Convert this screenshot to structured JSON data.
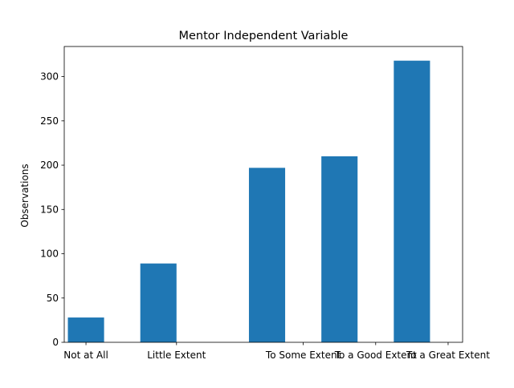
{
  "chart_data": {
    "type": "bar",
    "title": "Mentor Independent Variable",
    "xlabel": "",
    "ylabel": "Observations",
    "bars": [
      {
        "label": "Not at All",
        "x": 0,
        "value": 28
      },
      {
        "label": "Little Extent",
        "x": 1,
        "value": 89
      },
      {
        "label": "To Some Extent",
        "x": 2.5,
        "value": 197
      },
      {
        "label": "To a Good Extent",
        "x": 3.5,
        "value": 210
      },
      {
        "label": "To a Great Extent",
        "x": 4.5,
        "value": 318
      }
    ],
    "xticks": [
      {
        "label": "Not at All",
        "x": 0
      },
      {
        "label": "Little Extent",
        "x": 1.25
      },
      {
        "label": "To Some Extent",
        "x": 3.0
      },
      {
        "label": "To a Good Extent",
        "x": 4.0
      },
      {
        "label": "To a Great Extent",
        "x": 5.0
      }
    ],
    "yticks": [
      0,
      50,
      100,
      150,
      200,
      250,
      300
    ],
    "xlim": [
      -0.3,
      5.2
    ],
    "ylim": [
      0,
      334
    ],
    "grid": false,
    "legend": "none",
    "bar_width": 0.5,
    "colors": {
      "bar": "#1f77b4",
      "axes": "#000000",
      "text": "#000000"
    }
  }
}
